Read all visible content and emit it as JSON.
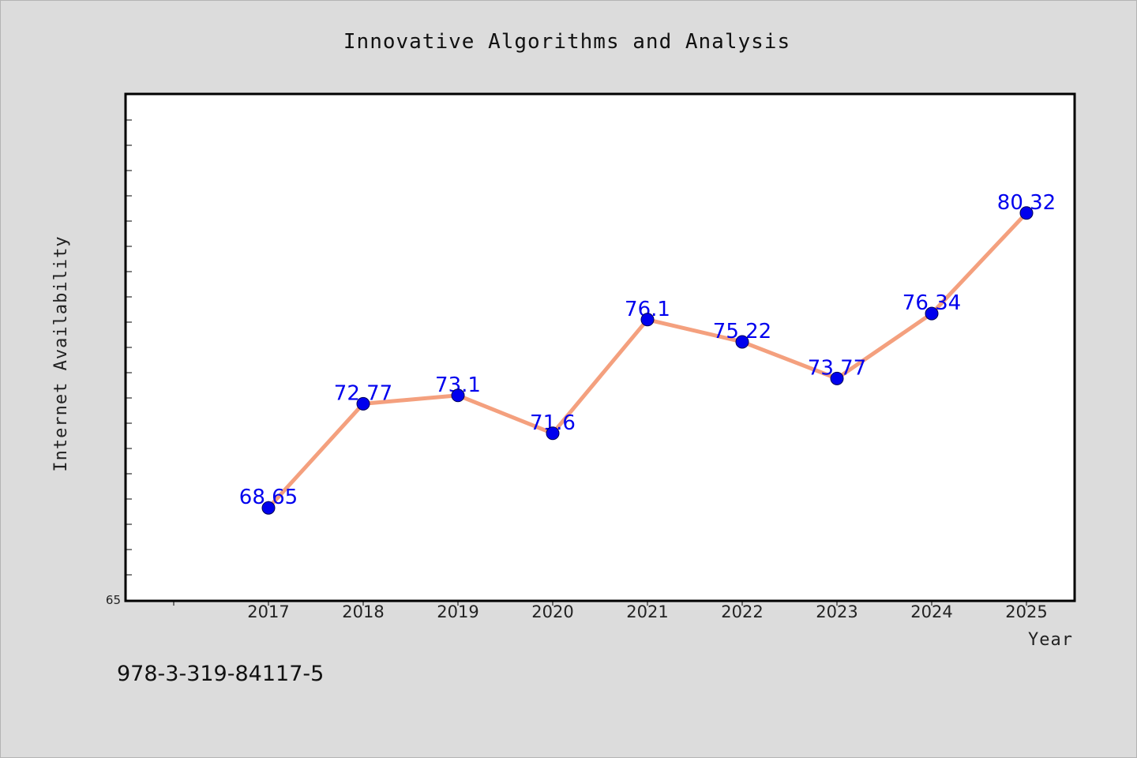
{
  "chart_data": {
    "type": "line",
    "title": "Innovative Algorithms and Analysis",
    "xlabel": "Year",
    "ylabel": "Internet Availability",
    "categories": [
      "2017",
      "2018",
      "2019",
      "2020",
      "2021",
      "2022",
      "2023",
      "2024",
      "2025"
    ],
    "series": [
      {
        "values": [
          68.65,
          72.77,
          73.1,
          71.6,
          76.1,
          75.22,
          73.77,
          76.34,
          80.32
        ],
        "labels": [
          "68.65",
          "72.77",
          "73.1",
          "71.6",
          "76.1",
          "75.22",
          "73.77",
          "76.34",
          "80.32"
        ]
      }
    ],
    "ylim": [
      65,
      85
    ],
    "yticks": [
      65
    ],
    "grid": false,
    "colors": {
      "line": "#f4a07e",
      "marker": "#0000ee",
      "data_label": "#0000ee",
      "plot_bg": "#ffffff",
      "page_bg": "#dcdcdc"
    }
  },
  "footer": {
    "isbn": "978-3-319-84117-5"
  }
}
